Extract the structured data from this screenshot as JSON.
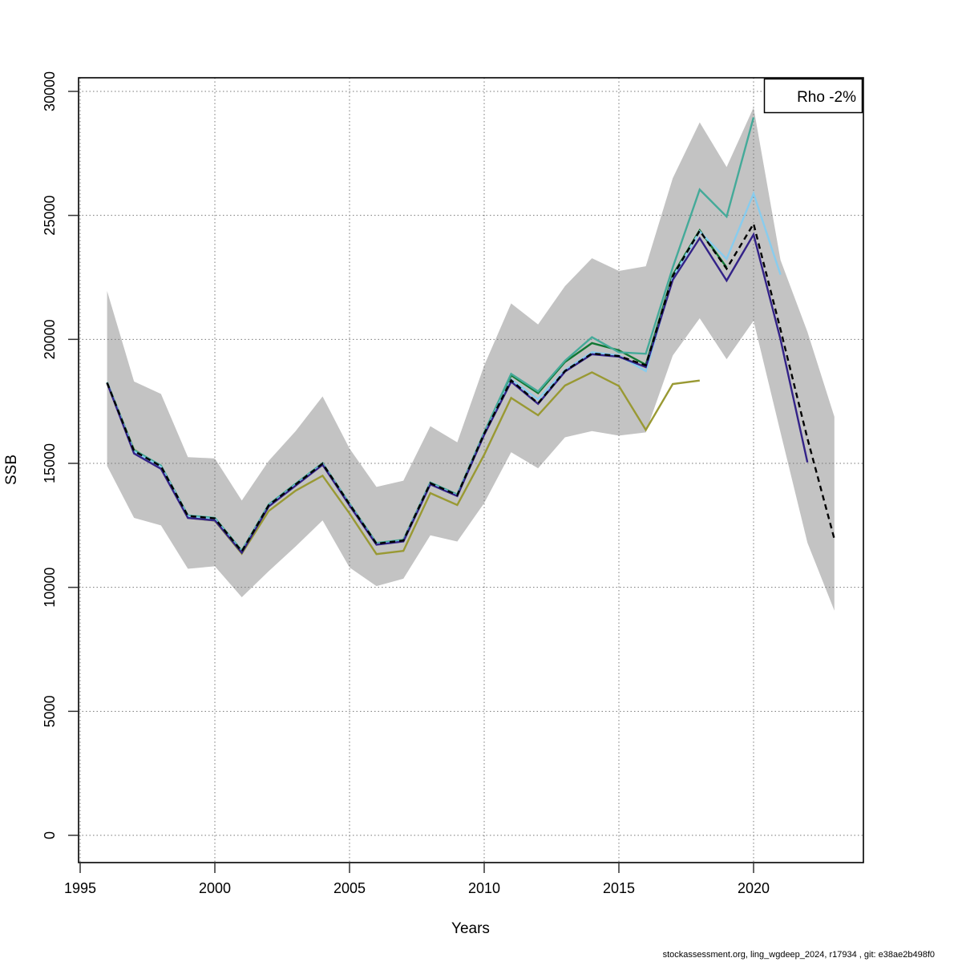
{
  "legend": {
    "label": "Rho -2%"
  },
  "footer": {
    "text": "stockassessment.org, ling_wgdeep_2024, r17934 , git: e38ae2b498f0"
  },
  "axes": {
    "x_title": "Years",
    "y_title": "SSB",
    "x_tick_labels": [
      "1995",
      "2000",
      "2005",
      "2010",
      "2015",
      "2020"
    ],
    "y_tick_labels": [
      "0",
      "5000",
      "10000",
      "15000",
      "20000",
      "25000",
      "30000"
    ]
  },
  "colors": {
    "band": "#c3c3c3",
    "grid": "#777777",
    "axis": "#000000",
    "base_run": "#000000",
    "peel_2022": "#332288",
    "peel_2021": "#88CCEE",
    "peel_2020": "#44AA99",
    "peel_2019": "#117733",
    "peel_2018": "#999933"
  },
  "chart_data": {
    "type": "line",
    "title": "",
    "xlabel": "Years",
    "ylabel": "SSB",
    "xlim": [
      1995,
      2024
    ],
    "ylim": [
      0,
      30000
    ],
    "grid": true,
    "legend_position": "top-right",
    "x_ticks": [
      1995,
      2000,
      2005,
      2010,
      2015,
      2020
    ],
    "y_ticks": [
      0,
      5000,
      10000,
      15000,
      20000,
      25000,
      30000
    ],
    "band": {
      "name": "confidence-interval",
      "color": "#c3c3c3",
      "start_year": 1996,
      "upper": [
        21950,
        18300,
        17800,
        15250,
        15200,
        13500,
        15100,
        16300,
        17700,
        15600,
        14050,
        14300,
        16500,
        15850,
        18950,
        21450,
        20600,
        22150,
        23270,
        22760,
        22950,
        26500,
        28750,
        26950,
        29350,
        23200,
        20300,
        16880
      ],
      "lower": [
        14900,
        12800,
        12500,
        10750,
        10850,
        9600,
        10650,
        11650,
        12700,
        10800,
        10050,
        10350,
        12100,
        11850,
        13400,
        15450,
        14800,
        16050,
        16300,
        16120,
        16250,
        19350,
        20850,
        19200,
        20750,
        16250,
        11800,
        9060
      ]
    },
    "series": [
      {
        "name": "retro-peel-2018",
        "color": "#999933",
        "dash": false,
        "start_year": 1996,
        "values": [
          18230,
          15560,
          14850,
          12800,
          12690,
          11360,
          13080,
          13900,
          14500,
          12980,
          11340,
          11470,
          13800,
          13320,
          15350,
          17640,
          16940,
          18140,
          18670,
          18120,
          16350,
          18200,
          18340
        ]
      },
      {
        "name": "retro-peel-2019",
        "color": "#117733",
        "dash": false,
        "start_year": 1996,
        "values": [
          18260,
          15520,
          14900,
          12890,
          12790,
          11470,
          13330,
          14170,
          15000,
          13370,
          11780,
          11910,
          14220,
          13740,
          16230,
          18550,
          17830,
          19090,
          19850,
          19560,
          18980,
          22600,
          24400,
          22900
        ]
      },
      {
        "name": "retro-peel-2020",
        "color": "#44AA99",
        "dash": false,
        "start_year": 1996,
        "values": [
          18270,
          15540,
          14910,
          12900,
          12800,
          11480,
          13340,
          14180,
          15010,
          13380,
          11790,
          11920,
          14230,
          13750,
          16250,
          18610,
          17900,
          19140,
          20090,
          19480,
          19420,
          22900,
          26040,
          24950,
          28950
        ]
      },
      {
        "name": "retro-peel-2021",
        "color": "#88CCEE",
        "dash": false,
        "start_year": 1996,
        "values": [
          18250,
          15470,
          14850,
          12850,
          12750,
          11430,
          13290,
          14130,
          14970,
          13330,
          11740,
          11870,
          14180,
          13700,
          16180,
          18380,
          17580,
          18760,
          19480,
          19350,
          18720,
          22500,
          24350,
          23240,
          25880,
          22610
        ]
      },
      {
        "name": "retro-peel-2022",
        "color": "#332288",
        "dash": false,
        "start_year": 1996,
        "values": [
          18240,
          15400,
          14780,
          12800,
          12700,
          11400,
          13260,
          14100,
          14940,
          13300,
          11720,
          11850,
          14150,
          13680,
          16150,
          18290,
          17400,
          18700,
          19400,
          19300,
          18880,
          22400,
          24080,
          22370,
          24230,
          20000,
          15040
        ]
      },
      {
        "name": "base-run-2023",
        "color": "#000000",
        "dash": true,
        "start_year": 1996,
        "values": [
          18250,
          15500,
          14880,
          12880,
          12780,
          11450,
          13310,
          14150,
          14990,
          13350,
          11760,
          11890,
          14200,
          13720,
          16200,
          18350,
          17420,
          18730,
          19430,
          19330,
          18950,
          22550,
          24380,
          22850,
          24660,
          20400,
          16000,
          11950
        ]
      }
    ]
  }
}
